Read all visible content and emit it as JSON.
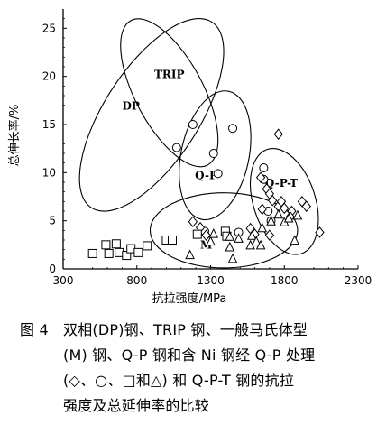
{
  "chart_data": {
    "type": "scatter",
    "xlabel": "抗拉强度/MPa",
    "ylabel": "总伸长率/%",
    "xlim": [
      300,
      2300
    ],
    "ylim": [
      0,
      27
    ],
    "x_ticks": [
      300,
      800,
      1300,
      1800,
      2300
    ],
    "y_ticks": [
      0,
      5,
      10,
      15,
      20,
      25
    ],
    "regions": [
      {
        "label": "TRIP",
        "center": [
          1020,
          18.3
        ],
        "rx": 230,
        "ry": 8.5,
        "rotation_deg": -28
      },
      {
        "label": "DP",
        "center": [
          900,
          16.0
        ],
        "rx": 320,
        "ry": 11.5,
        "rotation_deg": 33
      },
      {
        "label": "Q-P",
        "center": [
          1330,
          11.8
        ],
        "rx": 230,
        "ry": 6.8,
        "rotation_deg": 12
      },
      {
        "label": "Q-P-T",
        "center": [
          1800,
          7.0
        ],
        "rx": 210,
        "ry": 5.7,
        "rotation_deg": -18
      },
      {
        "label": "M",
        "center": [
          1390,
          4.0
        ],
        "rx": 500,
        "ry": 3.9,
        "rotation_deg": 0
      }
    ],
    "series": [
      {
        "marker": "circle",
        "points": [
          [
            1070,
            12.6
          ],
          [
            1180,
            15.0
          ],
          [
            1450,
            14.6
          ],
          [
            1320,
            12.0
          ],
          [
            1350,
            9.9
          ],
          [
            1660,
            10.5
          ],
          [
            1660,
            9.3
          ],
          [
            1260,
            3.9
          ],
          [
            1490,
            3.8
          ],
          [
            1690,
            6.0
          ],
          [
            1710,
            5.0
          ]
        ]
      },
      {
        "marker": "diamond",
        "points": [
          [
            1760,
            14.0
          ],
          [
            1640,
            9.5
          ],
          [
            1650,
            6.2
          ],
          [
            1680,
            8.3
          ],
          [
            1700,
            7.8
          ],
          [
            1720,
            7.1
          ],
          [
            1760,
            6.5
          ],
          [
            1780,
            7.0
          ],
          [
            1800,
            6.3
          ],
          [
            1850,
            6.0
          ],
          [
            1920,
            7.0
          ],
          [
            2040,
            3.8
          ],
          [
            1840,
            5.4
          ],
          [
            1950,
            6.5
          ],
          [
            1700,
            3.5
          ],
          [
            1600,
            3.6
          ],
          [
            1570,
            4.2
          ],
          [
            1230,
            4.3
          ],
          [
            1270,
            3.5
          ],
          [
            1180,
            4.9
          ]
        ]
      },
      {
        "marker": "square",
        "points": [
          [
            500,
            1.6
          ],
          [
            590,
            2.5
          ],
          [
            610,
            1.6
          ],
          [
            660,
            2.6
          ],
          [
            680,
            1.7
          ],
          [
            730,
            1.4
          ],
          [
            760,
            2.1
          ],
          [
            810,
            1.7
          ],
          [
            870,
            2.4
          ],
          [
            1000,
            3.0
          ],
          [
            1040,
            3.0
          ],
          [
            1210,
            3.6
          ],
          [
            1400,
            3.9
          ],
          [
            1410,
            3.4
          ]
        ]
      },
      {
        "marker": "triangle",
        "points": [
          [
            1160,
            1.4
          ],
          [
            1300,
            2.8
          ],
          [
            1320,
            3.6
          ],
          [
            1430,
            2.2
          ],
          [
            1430,
            3.3
          ],
          [
            1450,
            1.0
          ],
          [
            1490,
            3.1
          ],
          [
            1570,
            2.4
          ],
          [
            1580,
            3.4
          ],
          [
            1610,
            2.8
          ],
          [
            1650,
            4.2
          ],
          [
            1710,
            4.9
          ],
          [
            1760,
            5.6
          ],
          [
            1800,
            4.8
          ],
          [
            1830,
            5.2
          ],
          [
            1890,
            5.5
          ],
          [
            1870,
            2.9
          ],
          [
            1640,
            2.4
          ]
        ]
      }
    ]
  },
  "caption": {
    "figure_number": "图 4",
    "lines": [
      "双相(DP)钢、TRIP 钢、一般马氏体型",
      "(M) 钢、Q-P 钢和含 Ni 钢经 Q-P 处理",
      "(◇、○、□和△) 和 Q-P-T 钢的抗拉",
      "强度及总延伸率的比较"
    ]
  }
}
